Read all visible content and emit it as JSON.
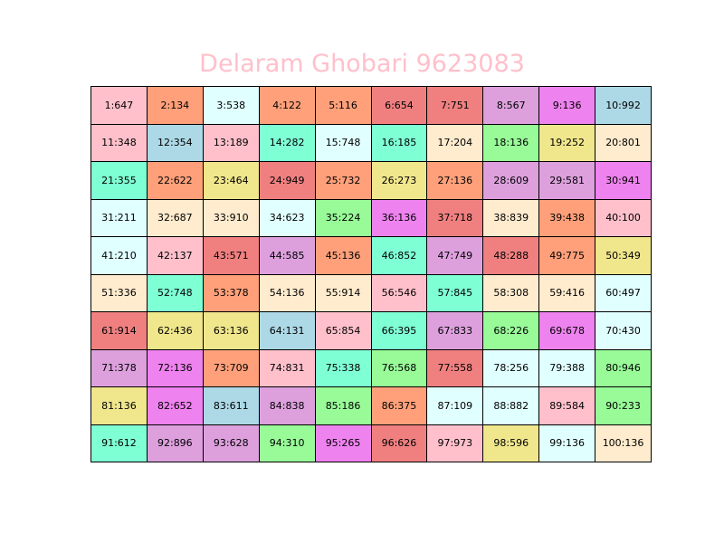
{
  "chart_data": {
    "type": "table",
    "title": "Delaram Ghobari 9623083",
    "title_color": "#ffc0cb",
    "rows": 10,
    "cols": 10,
    "cells": [
      {
        "label": "1:647",
        "color": "#ffc0cb"
      },
      {
        "label": "2:134",
        "color": "#ffa07a"
      },
      {
        "label": "3:538",
        "color": "#e0ffff"
      },
      {
        "label": "4:122",
        "color": "#ffa07a"
      },
      {
        "label": "5:116",
        "color": "#ffa07a"
      },
      {
        "label": "6:654",
        "color": "#f08080"
      },
      {
        "label": "7:751",
        "color": "#f08080"
      },
      {
        "label": "8:567",
        "color": "#dda0dd"
      },
      {
        "label": "9:136",
        "color": "#ee82ee"
      },
      {
        "label": "10:992",
        "color": "#add8e6"
      },
      {
        "label": "11:348",
        "color": "#ffc0cb"
      },
      {
        "label": "12:354",
        "color": "#add8e6"
      },
      {
        "label": "13:189",
        "color": "#ffc0cb"
      },
      {
        "label": "14:282",
        "color": "#7fffd4"
      },
      {
        "label": "15:748",
        "color": "#e0ffff"
      },
      {
        "label": "16:185",
        "color": "#7fffd4"
      },
      {
        "label": "17:204",
        "color": "#ffebcd"
      },
      {
        "label": "18:136",
        "color": "#98fb98"
      },
      {
        "label": "19:252",
        "color": "#f0e68c"
      },
      {
        "label": "20:801",
        "color": "#ffebcd"
      },
      {
        "label": "21:355",
        "color": "#7fffd4"
      },
      {
        "label": "22:622",
        "color": "#ffa07a"
      },
      {
        "label": "23:464",
        "color": "#f0e68c"
      },
      {
        "label": "24:949",
        "color": "#f08080"
      },
      {
        "label": "25:732",
        "color": "#ffa07a"
      },
      {
        "label": "26:273",
        "color": "#f0e68c"
      },
      {
        "label": "27:136",
        "color": "#ffa07a"
      },
      {
        "label": "28:609",
        "color": "#dda0dd"
      },
      {
        "label": "29:581",
        "color": "#dda0dd"
      },
      {
        "label": "30:941",
        "color": "#ee82ee"
      },
      {
        "label": "31:211",
        "color": "#e0ffff"
      },
      {
        "label": "32:687",
        "color": "#ffebcd"
      },
      {
        "label": "33:910",
        "color": "#ffebcd"
      },
      {
        "label": "34:623",
        "color": "#e0ffff"
      },
      {
        "label": "35:224",
        "color": "#98fb98"
      },
      {
        "label": "36:136",
        "color": "#ee82ee"
      },
      {
        "label": "37:718",
        "color": "#f08080"
      },
      {
        "label": "38:839",
        "color": "#ffebcd"
      },
      {
        "label": "39:438",
        "color": "#ffa07a"
      },
      {
        "label": "40:100",
        "color": "#ffc0cb"
      },
      {
        "label": "41:210",
        "color": "#e0ffff"
      },
      {
        "label": "42:137",
        "color": "#ffc0cb"
      },
      {
        "label": "43:571",
        "color": "#f08080"
      },
      {
        "label": "44:585",
        "color": "#dda0dd"
      },
      {
        "label": "45:136",
        "color": "#ffa07a"
      },
      {
        "label": "46:852",
        "color": "#7fffd4"
      },
      {
        "label": "47:749",
        "color": "#dda0dd"
      },
      {
        "label": "48:288",
        "color": "#f08080"
      },
      {
        "label": "49:775",
        "color": "#ffa07a"
      },
      {
        "label": "50:349",
        "color": "#f0e68c"
      },
      {
        "label": "51:336",
        "color": "#ffebcd"
      },
      {
        "label": "52:748",
        "color": "#7fffd4"
      },
      {
        "label": "53:378",
        "color": "#ffa07a"
      },
      {
        "label": "54:136",
        "color": "#ffebcd"
      },
      {
        "label": "55:914",
        "color": "#ffebcd"
      },
      {
        "label": "56:546",
        "color": "#ffc0cb"
      },
      {
        "label": "57:845",
        "color": "#7fffd4"
      },
      {
        "label": "58:308",
        "color": "#ffebcd"
      },
      {
        "label": "59:416",
        "color": "#ffebcd"
      },
      {
        "label": "60:497",
        "color": "#e0ffff"
      },
      {
        "label": "61:914",
        "color": "#f08080"
      },
      {
        "label": "62:436",
        "color": "#f0e68c"
      },
      {
        "label": "63:136",
        "color": "#f0e68c"
      },
      {
        "label": "64:131",
        "color": "#add8e6"
      },
      {
        "label": "65:854",
        "color": "#ffc0cb"
      },
      {
        "label": "66:395",
        "color": "#7fffd4"
      },
      {
        "label": "67:833",
        "color": "#dda0dd"
      },
      {
        "label": "68:226",
        "color": "#98fb98"
      },
      {
        "label": "69:678",
        "color": "#ee82ee"
      },
      {
        "label": "70:430",
        "color": "#e0ffff"
      },
      {
        "label": "71:378",
        "color": "#dda0dd"
      },
      {
        "label": "72:136",
        "color": "#ee82ee"
      },
      {
        "label": "73:709",
        "color": "#ffa07a"
      },
      {
        "label": "74:831",
        "color": "#ffc0cb"
      },
      {
        "label": "75:338",
        "color": "#7fffd4"
      },
      {
        "label": "76:568",
        "color": "#98fb98"
      },
      {
        "label": "77:558",
        "color": "#f08080"
      },
      {
        "label": "78:256",
        "color": "#e0ffff"
      },
      {
        "label": "79:388",
        "color": "#e0ffff"
      },
      {
        "label": "80:946",
        "color": "#98fb98"
      },
      {
        "label": "81:136",
        "color": "#f0e68c"
      },
      {
        "label": "82:652",
        "color": "#ee82ee"
      },
      {
        "label": "83:611",
        "color": "#add8e6"
      },
      {
        "label": "84:838",
        "color": "#dda0dd"
      },
      {
        "label": "85:186",
        "color": "#98fb98"
      },
      {
        "label": "86:375",
        "color": "#ffa07a"
      },
      {
        "label": "87:109",
        "color": "#e0ffff"
      },
      {
        "label": "88:882",
        "color": "#e0ffff"
      },
      {
        "label": "89:584",
        "color": "#ffc0cb"
      },
      {
        "label": "90:233",
        "color": "#98fb98"
      },
      {
        "label": "91:612",
        "color": "#7fffd4"
      },
      {
        "label": "92:896",
        "color": "#dda0dd"
      },
      {
        "label": "93:628",
        "color": "#dda0dd"
      },
      {
        "label": "94:310",
        "color": "#98fb98"
      },
      {
        "label": "95:265",
        "color": "#ee82ee"
      },
      {
        "label": "96:626",
        "color": "#f08080"
      },
      {
        "label": "97:973",
        "color": "#ffc0cb"
      },
      {
        "label": "98:596",
        "color": "#f0e68c"
      },
      {
        "label": "99:136",
        "color": "#e0ffff"
      },
      {
        "label": "100:136",
        "color": "#ffebcd"
      }
    ]
  }
}
